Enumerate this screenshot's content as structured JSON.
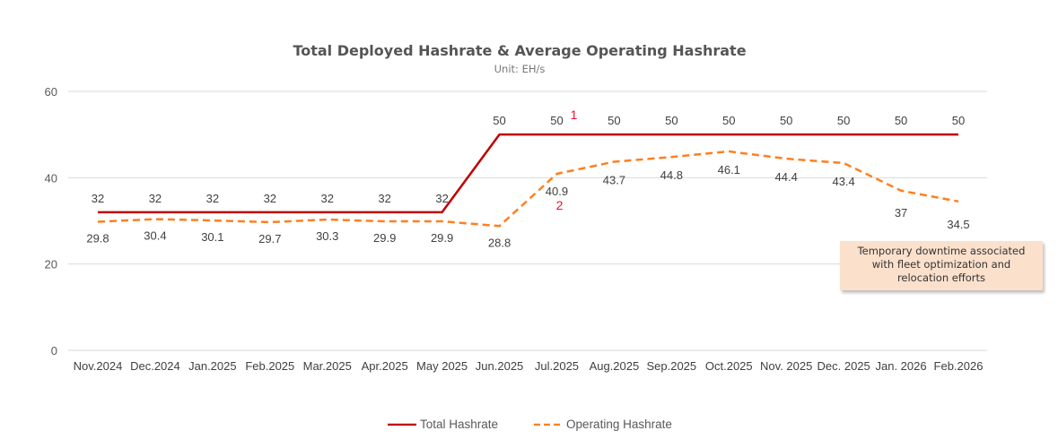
{
  "chart_data": {
    "type": "line",
    "title": "Total Deployed Hashrate & Average Operating Hashrate",
    "subtitle": "Unit: EH/s",
    "xlabel": "",
    "ylabel": "",
    "ylim": [
      0,
      60
    ],
    "yticks": [
      0,
      20,
      40,
      60
    ],
    "grid": true,
    "legend_position": "bottom",
    "categories": [
      "Nov.2024",
      "Dec.2024",
      "Jan.2025",
      "Feb.2025",
      "Mar.2025",
      "Apr.2025",
      "May 2025",
      "Jun.2025",
      "Jul.2025",
      "Aug.2025",
      "Sep.2025",
      "Oct.2025",
      "Nov. 2025",
      "Dec. 2025",
      "Jan. 2026",
      "Feb.2026"
    ],
    "series": [
      {
        "name": "Total Hashrate",
        "style": "solid",
        "color": "#c00000",
        "values": [
          32,
          32,
          32,
          32,
          32,
          32,
          32,
          50,
          50,
          50,
          50,
          50,
          50,
          50,
          50,
          50
        ]
      },
      {
        "name": "Operating Hashrate",
        "style": "dashed",
        "color": "#ff7f1e",
        "values": [
          29.8,
          30.4,
          30.1,
          29.7,
          30.3,
          29.9,
          29.9,
          28.8,
          40.9,
          43.7,
          44.8,
          46.1,
          44.4,
          43.4,
          37,
          34.5
        ]
      }
    ],
    "annotations": [
      {
        "text": "1",
        "category": "Jul.2025",
        "series": "Total Hashrate",
        "color": "#e8112d"
      },
      {
        "text": "2",
        "category": "Jul.2025",
        "series": "Operating Hashrate",
        "color": "#e8112d"
      },
      {
        "text": "Temporary downtime associated with fleet optimization and relocation efforts",
        "type": "callout",
        "background": "#fbe0cc"
      }
    ]
  },
  "note": {
    "line1": "Temporary downtime associated",
    "line2": "with fleet optimization and",
    "line3": "relocation efforts"
  },
  "legend": {
    "total": "Total Hashrate",
    "operating": "Operating Hashrate"
  }
}
